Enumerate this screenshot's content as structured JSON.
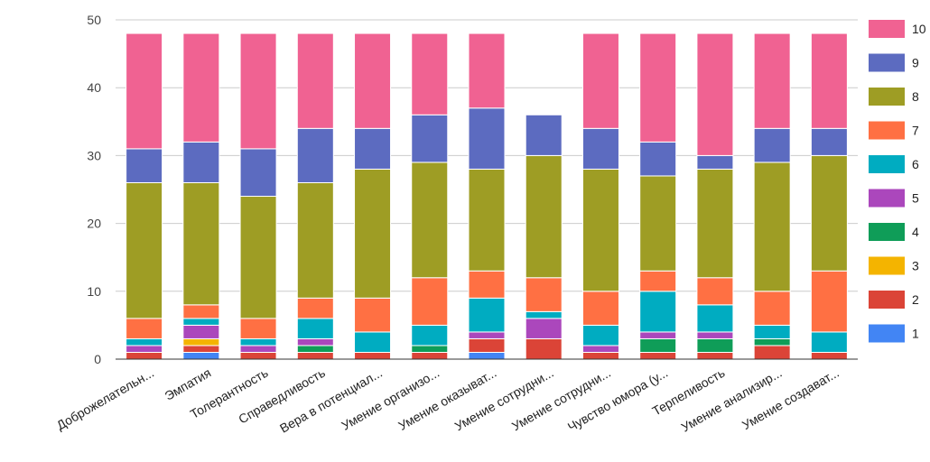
{
  "chart_data": {
    "type": "bar",
    "stacked": true,
    "categories": [
      "Доброжелательн...",
      "Эмпатия",
      "Толерантность",
      "Справедливость",
      "Вера в потенциал...",
      "Умение организо...",
      "Умение оказыват...",
      "Умение сотрудни...",
      "Умение сотрудни...",
      "Чувство юмора (у...",
      "Терпеливость",
      "Умение анализир...",
      "Умение создават..."
    ],
    "series": [
      {
        "name": "1",
        "color": "#4285f4",
        "values": [
          0,
          1,
          0,
          0,
          0,
          0,
          1,
          0,
          0,
          0,
          0,
          0,
          0
        ]
      },
      {
        "name": "2",
        "color": "#db4437",
        "values": [
          1,
          1,
          1,
          1,
          1,
          1,
          2,
          3,
          1,
          1,
          1,
          2,
          1
        ]
      },
      {
        "name": "3",
        "color": "#f4b400",
        "values": [
          0,
          1,
          0,
          0,
          0,
          0,
          0,
          0,
          0,
          0,
          0,
          0,
          0
        ]
      },
      {
        "name": "4",
        "color": "#0f9d58",
        "values": [
          0,
          0,
          0,
          1,
          0,
          1,
          0,
          0,
          0,
          2,
          2,
          1,
          0
        ]
      },
      {
        "name": "5",
        "color": "#ab47bc",
        "values": [
          1,
          2,
          1,
          1,
          0,
          0,
          1,
          3,
          1,
          1,
          1,
          0,
          0
        ]
      },
      {
        "name": "6",
        "color": "#00acc1",
        "values": [
          1,
          1,
          1,
          3,
          3,
          3,
          5,
          1,
          3,
          6,
          4,
          2,
          3
        ]
      },
      {
        "name": "7",
        "color": "#ff7043",
        "values": [
          3,
          2,
          3,
          3,
          5,
          7,
          4,
          5,
          5,
          3,
          4,
          5,
          9
        ]
      },
      {
        "name": "8",
        "color": "#9e9d24",
        "values": [
          20,
          18,
          18,
          17,
          19,
          17,
          15,
          18,
          18,
          14,
          16,
          19,
          17
        ]
      },
      {
        "name": "9",
        "color": "#5c6bc0",
        "values": [
          5,
          6,
          7,
          8,
          6,
          7,
          9,
          6,
          6,
          5,
          2,
          5,
          4
        ]
      },
      {
        "name": "10",
        "color": "#f06292",
        "values": [
          17,
          16,
          17,
          14,
          14,
          12,
          11,
          0,
          14,
          16,
          18,
          14,
          14
        ]
      }
    ],
    "ylim": [
      0,
      50
    ],
    "yticks": [
      0,
      10,
      20,
      30,
      40,
      50
    ],
    "legend_position": "right",
    "legend_order": [
      "10",
      "9",
      "8",
      "7",
      "6",
      "5",
      "4",
      "3",
      "2",
      "1"
    ],
    "grid": true
  },
  "style": {
    "grid_color": "#cccccc",
    "baseline_color": "#333333",
    "bar_gap_color": "#ffffff"
  }
}
